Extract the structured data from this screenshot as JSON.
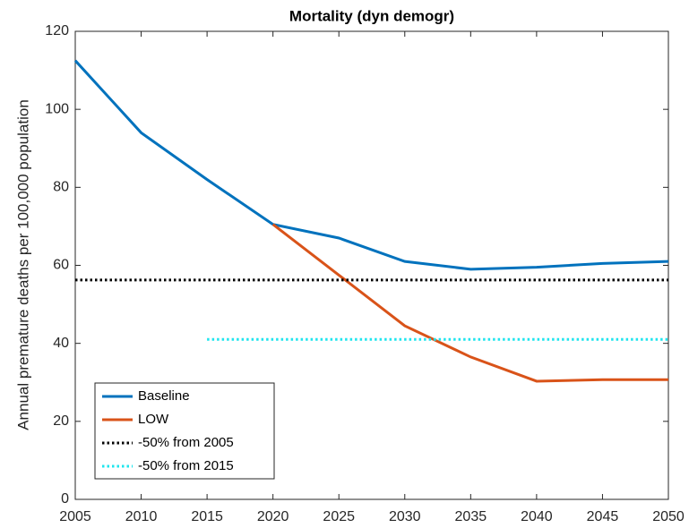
{
  "chart_data": {
    "type": "line",
    "title": "Mortality (dyn demogr)",
    "y_label": "Annual premature deaths per 100,000 population",
    "x": [
      2005,
      2010,
      2015,
      2020,
      2025,
      2030,
      2035,
      2040,
      2045,
      2050
    ],
    "xlim": [
      2005,
      2050
    ],
    "xticks": [
      2005,
      2010,
      2015,
      2020,
      2025,
      2030,
      2035,
      2040,
      2045,
      2050
    ],
    "ylim": [
      0,
      120
    ],
    "yticks": [
      0,
      20,
      40,
      60,
      80,
      100,
      120
    ],
    "grid": false,
    "legend_position": "lower left",
    "series": [
      {
        "name": "Baseline",
        "color": "#0072bd",
        "style": "solid",
        "values": [
          112.5,
          94,
          82,
          70.5,
          67,
          61,
          59,
          59.5,
          60.5,
          61
        ]
      },
      {
        "name": "LOW",
        "color": "#d95319",
        "style": "solid",
        "values": [
          null,
          null,
          null,
          70.5,
          57.5,
          44.5,
          36.5,
          30.3,
          30.7,
          30.7
        ]
      },
      {
        "name": "-50% from 2005",
        "color": "#000000",
        "style": "dotted",
        "values": [
          56.25,
          56.25,
          56.25,
          56.25,
          56.25,
          56.25,
          56.25,
          56.25,
          56.25,
          56.25
        ]
      },
      {
        "name": "-50% from 2015",
        "color": "#1ee5ee",
        "style": "dotted",
        "values": [
          null,
          null,
          41,
          41,
          41,
          41,
          41,
          41,
          41,
          41
        ]
      }
    ]
  }
}
